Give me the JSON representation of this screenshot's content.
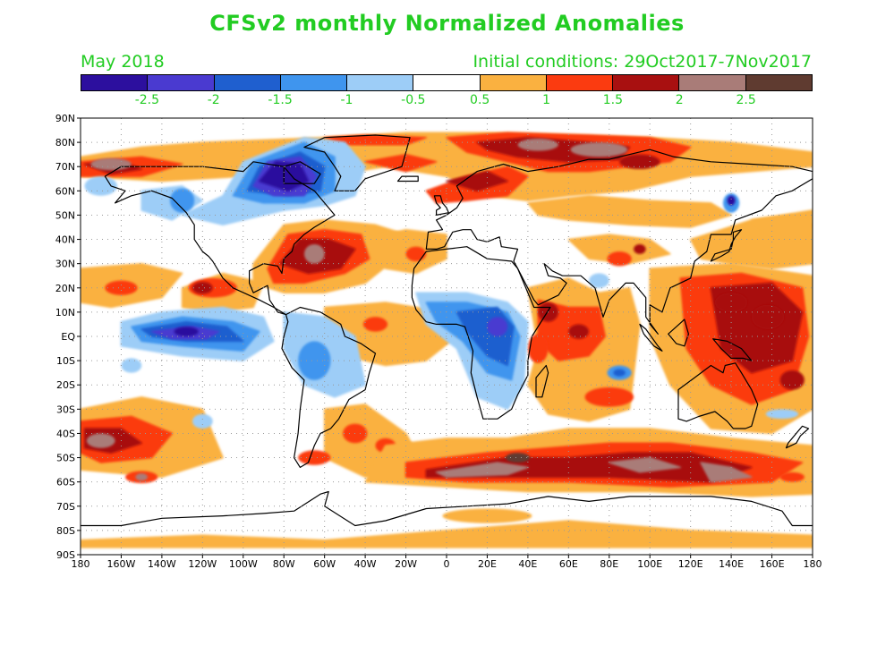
{
  "title": "CFSv2 monthly Normalized Anomalies",
  "valid_month": "May 2018",
  "initial_conditions": "Initial conditions: 29Oct2017-7Nov2017",
  "colorbar": {
    "colors": [
      "#2c0f9e",
      "#4a3ad0",
      "#1f5fcf",
      "#3f95ee",
      "#9dcdf7",
      "#ffffff",
      "#fab140",
      "#fb3b10",
      "#a81010",
      "#a97c78",
      "#5f3b30"
    ],
    "tick_labels": [
      "-2.5",
      "-2",
      "-1.5",
      "-1",
      "-0.5",
      "0.5",
      "1",
      "1.5",
      "2",
      "2.5"
    ]
  },
  "lat_labels": [
    "90N",
    "80N",
    "70N",
    "60N",
    "50N",
    "40N",
    "30N",
    "20N",
    "10N",
    "EQ",
    "10S",
    "20S",
    "30S",
    "40S",
    "50S",
    "60S",
    "70S",
    "80S",
    "90S"
  ],
  "lon_labels": [
    "180",
    "160W",
    "140W",
    "120W",
    "100W",
    "80W",
    "60W",
    "40W",
    "20W",
    "0",
    "20E",
    "40E",
    "60E",
    "80E",
    "100E",
    "120E",
    "140E",
    "160E",
    "180"
  ],
  "map_data": {
    "projection": "equirectangular",
    "lon_range": [
      -180,
      180
    ],
    "lat_range": [
      -90,
      90
    ],
    "grid": true,
    "anomaly_regions": [
      {
        "name": "North America / Canada cold anomaly",
        "level": "-2.5",
        "lon": [
          -95,
          -55
        ],
        "lat": [
          55,
          78
        ]
      },
      {
        "name": "Eastern tropical Pacific cold anomaly",
        "level": "-2.5",
        "lon": [
          -155,
          -95
        ],
        "lat": [
          -5,
          8
        ]
      },
      {
        "name": "Equatorial Africa negative anomaly",
        "level": "-1.5",
        "lon": [
          -10,
          35
        ],
        "lat": [
          -20,
          15
        ]
      },
      {
        "name": "Western North Atlantic warm anomaly",
        "level": "2",
        "lon": [
          -85,
          -45
        ],
        "lat": [
          22,
          45
        ]
      },
      {
        "name": "Northern Eurasia / Arctic warm anomaly",
        "level": "2.5",
        "lon": [
          10,
          100
        ],
        "lat": [
          68,
          82
        ]
      },
      {
        "name": "Western Pacific warm pool anomaly",
        "level": "2",
        "lon": [
          110,
          165
        ],
        "lat": [
          -15,
          25
        ]
      },
      {
        "name": "Southern Ocean warm belt",
        "level": "2.5",
        "lon": [
          -30,
          160
        ],
        "lat": [
          -62,
          -45
        ]
      },
      {
        "name": "Southeast Pacific warm anomaly",
        "level": "2",
        "lon": [
          -180,
          -125
        ],
        "lat": [
          -48,
          -30
        ]
      }
    ]
  }
}
